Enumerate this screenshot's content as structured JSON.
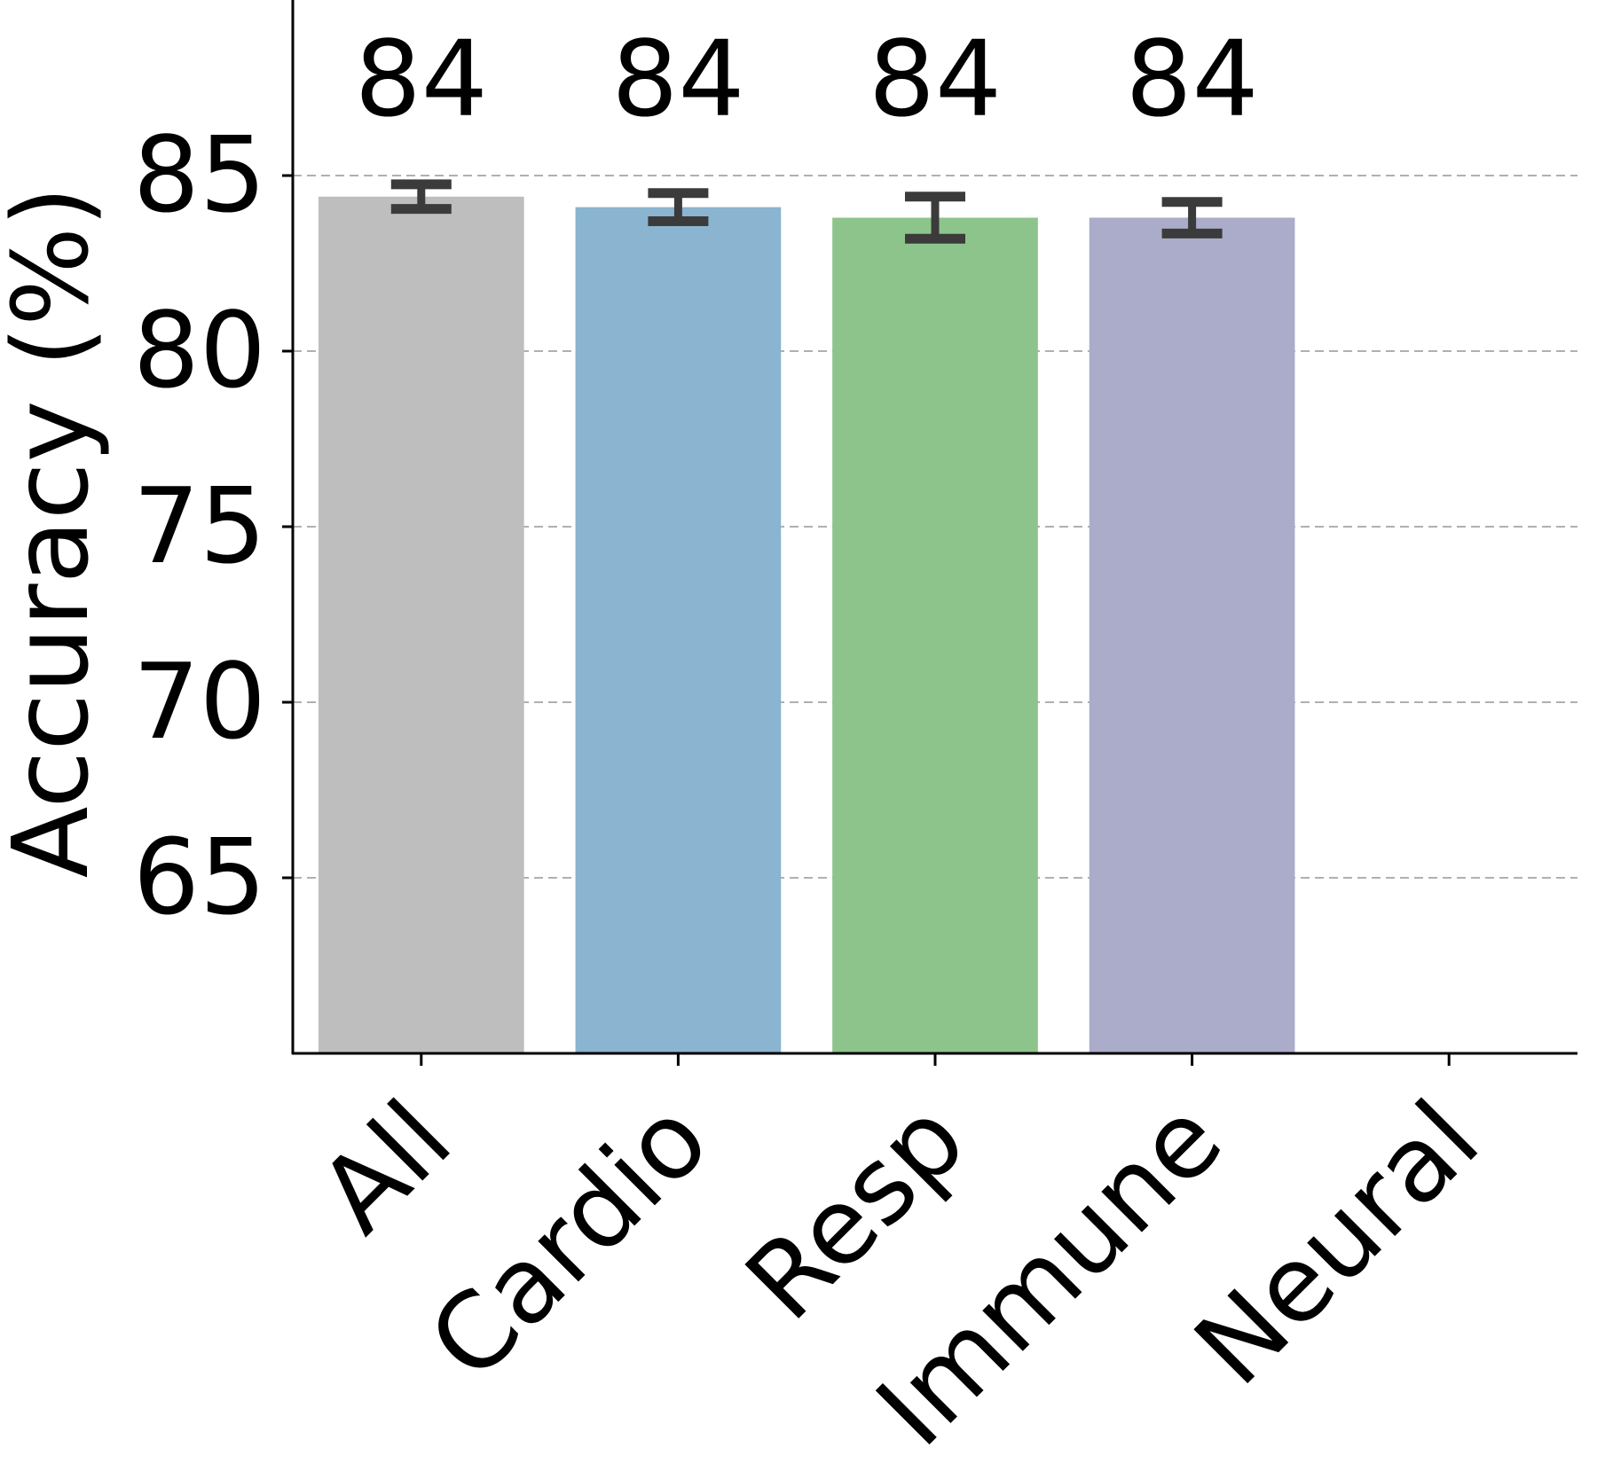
{
  "chart_data": {
    "type": "bar",
    "title": "",
    "xlabel": "",
    "ylabel": "Accuracy (%)",
    "categories": [
      "All",
      "Cardio",
      "Resp",
      "Immune",
      "Neural"
    ],
    "values": [
      84.4,
      84.1,
      83.8,
      83.8,
      null
    ],
    "errors": [
      0.35,
      0.4,
      0.6,
      0.45,
      null
    ],
    "data_labels": [
      "84",
      "84",
      "84",
      "84",
      ""
    ],
    "colors": [
      "#bebebe",
      "#8ab4cf",
      "#8dc48c",
      "#abacc9",
      "#ffffff"
    ],
    "ylim": [
      60,
      90
    ],
    "yticks": [
      65,
      70,
      75,
      80,
      85
    ],
    "grid": true,
    "grid_style": "dashed",
    "legend": "none"
  }
}
